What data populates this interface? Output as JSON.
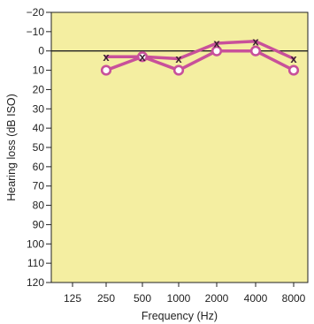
{
  "chart_data": {
    "type": "line",
    "title": "",
    "xlabel": "Frequency (Hz)",
    "ylabel": "Hearing loss (dB ISO)",
    "x_tick_labels": [
      "125",
      "250",
      "500",
      "1000",
      "2000",
      "4000",
      "8000"
    ],
    "y_range": [
      -20,
      120
    ],
    "y_axis_inverted": true,
    "y_ticks": [
      -20,
      -10,
      0,
      10,
      20,
      30,
      40,
      50,
      60,
      70,
      80,
      90,
      100,
      110,
      120
    ],
    "y_tick_labels": [
      "−20",
      "−10",
      "0",
      "10",
      "20",
      "30",
      "40",
      "50",
      "60",
      "70",
      "80",
      "90",
      "100",
      "110",
      "120"
    ],
    "reference_line_y": 0,
    "grid": false,
    "series": [
      {
        "marker": "o",
        "marker_symbol": "",
        "x": [
          "250",
          "500",
          "1000",
          "2000",
          "4000",
          "8000"
        ],
        "values": [
          10,
          3,
          10,
          0,
          0,
          10
        ]
      },
      {
        "marker": "x",
        "marker_symbol": "x",
        "x": [
          "250",
          "500",
          "1000",
          "2000",
          "4000",
          "8000"
        ],
        "values": [
          3,
          3,
          4,
          -4,
          -5,
          4
        ]
      }
    ],
    "colors": {
      "plot_background": "#f4eea1",
      "series_line": "#c8509a",
      "circle_fill": "#ffffff",
      "x_marker": "#3a2030",
      "axis": "#222222"
    }
  }
}
